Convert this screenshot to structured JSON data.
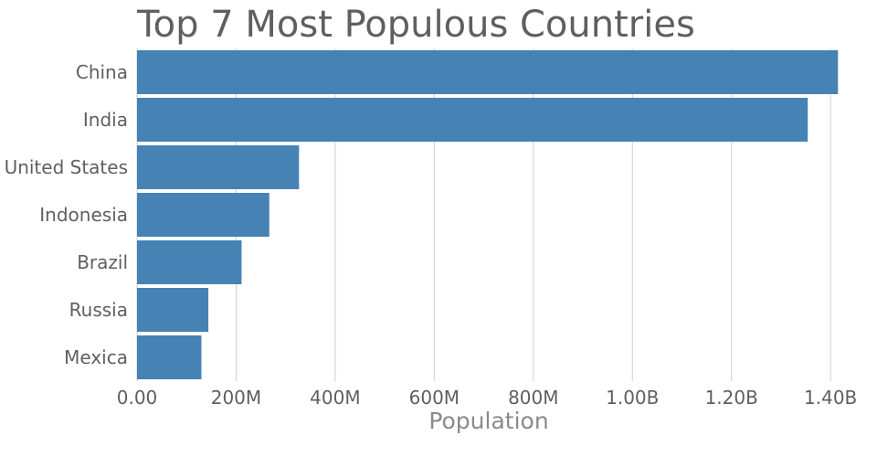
{
  "chart_data": {
    "type": "bar",
    "orientation": "horizontal",
    "title": "Top 7 Most Populous Countries",
    "xlabel": "Population",
    "ylabel": "",
    "categories": [
      "China",
      "India",
      "United States",
      "Indonesia",
      "Brazil",
      "Russia",
      "Mexica"
    ],
    "values": [
      1415000000,
      1354000000,
      327000000,
      267000000,
      211000000,
      144000000,
      130000000
    ],
    "xlim": [
      0,
      1420000000
    ],
    "xticks": [
      0,
      200000000,
      400000000,
      600000000,
      800000000,
      1000000000,
      1200000000,
      1400000000
    ],
    "xtick_labels": [
      "0.00",
      "200M",
      "400M",
      "600M",
      "800M",
      "1.00B",
      "1.20B",
      "1.40B"
    ],
    "grid": "vertical",
    "legend": "none",
    "bar_color": "#4682b4"
  }
}
